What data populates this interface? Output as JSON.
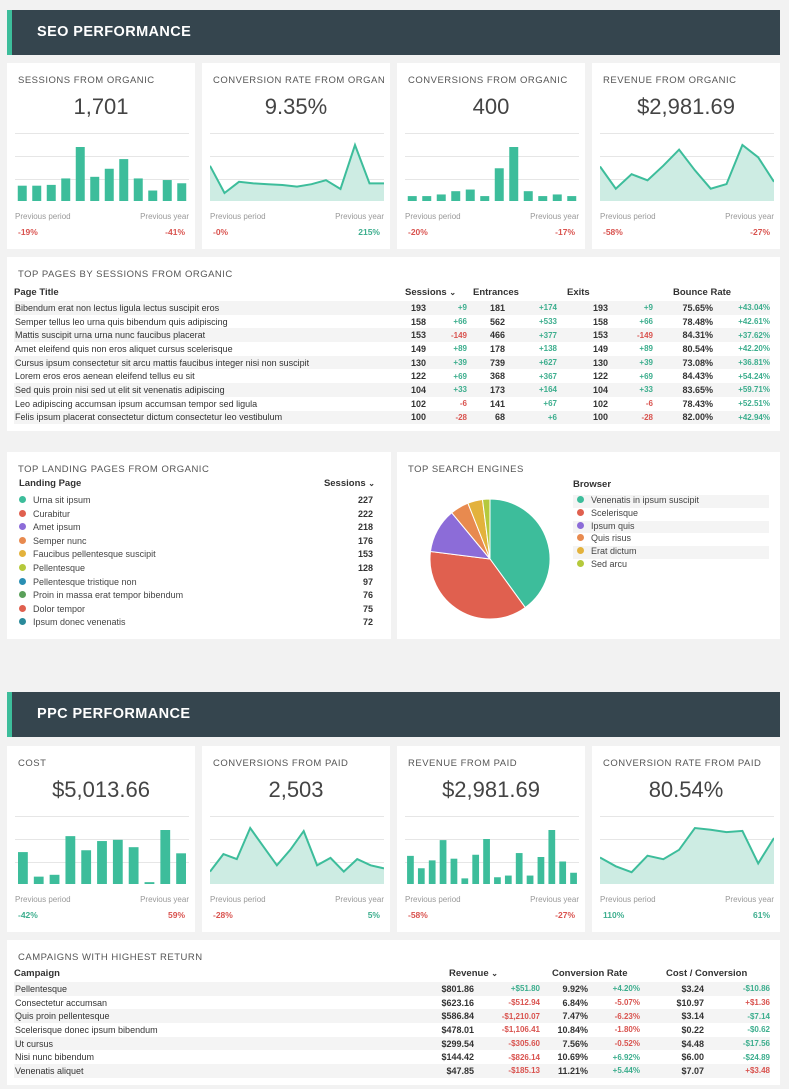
{
  "seo": {
    "header": "SEO PERFORMANCE",
    "kpis": [
      {
        "title": "SESSIONS FROM ORGANIC",
        "value": "1,701",
        "prev_label": "Previous period",
        "year_label": "Previous year",
        "prev_change": "-19%",
        "year_change": "-41%",
        "prev_dir": "neg",
        "year_dir": "neg",
        "chart": "bar",
        "series": [
          19,
          19,
          20,
          28,
          67,
          30,
          40,
          52,
          28,
          13,
          26,
          22
        ]
      },
      {
        "title": "CONVERSION RATE FROM ORGANIC",
        "value": "9.35%",
        "prev_label": "Previous period",
        "year_label": "Previous year",
        "prev_change": "-0%",
        "year_change": "215%",
        "prev_dir": "neg",
        "year_dir": "pos",
        "chart": "area",
        "series": [
          44,
          10,
          24,
          22,
          21,
          20,
          18,
          21,
          26,
          15,
          70,
          22,
          22
        ]
      },
      {
        "title": "CONVERSIONS FROM ORGANIC",
        "value": "400",
        "prev_label": "Previous period",
        "year_label": "Previous year",
        "prev_change": "-20%",
        "year_change": "-17%",
        "prev_dir": "neg",
        "year_dir": "neg",
        "chart": "bar",
        "series": [
          6,
          6,
          8,
          12,
          14,
          6,
          40,
          66,
          12,
          6,
          8,
          6
        ]
      },
      {
        "title": "REVENUE FROM ORGANIC",
        "value": "$2,981.69",
        "prev_label": "Previous period",
        "year_label": "Previous year",
        "prev_change": "-58%",
        "year_change": "-27%",
        "prev_dir": "neg",
        "year_dir": "neg",
        "chart": "area",
        "series": [
          45,
          16,
          35,
          27,
          46,
          67,
          40,
          16,
          22,
          73,
          57,
          25
        ]
      }
    ],
    "top_pages": {
      "title": "TOP PAGES BY SESSIONS FROM ORGANIC",
      "columns": [
        "Page Title",
        "Sessions",
        "Entrances",
        "Exits",
        "Bounce Rate"
      ],
      "rows": [
        [
          "Bibendum erat non lectus ligula lectus suscipit eros",
          "193",
          "+9",
          "181",
          "+174",
          "193",
          "+9",
          "75.65%",
          "+43.04%"
        ],
        [
          "Semper tellus leo urna quis bibendum quis adipiscing",
          "158",
          "+66",
          "562",
          "+533",
          "158",
          "+66",
          "78.48%",
          "+42.61%"
        ],
        [
          "Mattis suscipit urna urna nunc faucibus placerat",
          "153",
          "-149",
          "466",
          "+377",
          "153",
          "-149",
          "84.31%",
          "+37.62%"
        ],
        [
          "Amet eleifend quis non eros aliquet cursus scelerisque",
          "149",
          "+89",
          "178",
          "+138",
          "149",
          "+89",
          "80.54%",
          "+42.20%"
        ],
        [
          "Cursus ipsum consectetur sit arcu mattis faucibus integer nisi non suscipit",
          "130",
          "+39",
          "739",
          "+627",
          "130",
          "+39",
          "73.08%",
          "+36.81%"
        ],
        [
          "Lorem eros eros aenean eleifend tellus eu sit",
          "122",
          "+69",
          "368",
          "+367",
          "122",
          "+69",
          "84.43%",
          "+54.24%"
        ],
        [
          "Sed quis proin nisi sed ut elit sit venenatis adipiscing",
          "104",
          "+33",
          "173",
          "+164",
          "104",
          "+33",
          "83.65%",
          "+59.71%"
        ],
        [
          "Leo adipiscing accumsan ipsum accumsan tempor sed ligula",
          "102",
          "-6",
          "141",
          "+67",
          "102",
          "-6",
          "78.43%",
          "+52.51%"
        ],
        [
          "Felis ipsum placerat consectetur dictum consectetur leo vestibulum",
          "100",
          "-28",
          "68",
          "+6",
          "100",
          "-28",
          "82.00%",
          "+42.94%"
        ]
      ]
    },
    "landing": {
      "title": "TOP LANDING PAGES FROM ORGANIC",
      "col_page": "Landing Page",
      "col_sessions": "Sessions",
      "rows": [
        {
          "label": "Urna sit ipsum",
          "value": "227",
          "color": "#3dbd9b"
        },
        {
          "label": "Curabitur",
          "value": "222",
          "color": "#e0604f"
        },
        {
          "label": "Amet ipsum",
          "value": "218",
          "color": "#8c6cd8"
        },
        {
          "label": "Semper nunc",
          "value": "176",
          "color": "#e88a4f"
        },
        {
          "label": "Faucibus pellentesque suscipit",
          "value": "153",
          "color": "#e3b23c"
        },
        {
          "label": "Pellentesque",
          "value": "128",
          "color": "#b5c93c"
        },
        {
          "label": "Pellentesque tristique non",
          "value": "97",
          "color": "#2a8fb3"
        },
        {
          "label": "Proin in massa erat tempor bibendum",
          "value": "76",
          "color": "#5aa05a"
        },
        {
          "label": "Dolor tempor",
          "value": "75",
          "color": "#e0604f"
        },
        {
          "label": "Ipsum donec venenatis",
          "value": "72",
          "color": "#2a8a9a"
        }
      ]
    },
    "engines": {
      "title": "TOP SEARCH ENGINES",
      "legend_title": "Browser",
      "items": [
        {
          "label": "Venenatis in ipsum suscipit",
          "value": 40,
          "color": "#3dbd9b"
        },
        {
          "label": "Scelerisque",
          "value": 37,
          "color": "#e0604f"
        },
        {
          "label": "Ipsum quis",
          "value": 12,
          "color": "#8c6cd8"
        },
        {
          "label": "Quis risus",
          "value": 5,
          "color": "#e88a4f"
        },
        {
          "label": "Erat dictum",
          "value": 4,
          "color": "#e3b23c"
        },
        {
          "label": "Sed arcu",
          "value": 2,
          "color": "#b5c93c"
        }
      ]
    }
  },
  "ppc": {
    "header": "PPC PERFORMANCE",
    "kpis": [
      {
        "title": "COST",
        "value": "$5,013.66",
        "prev_label": "Previous period",
        "year_label": "Previous year",
        "prev_change": "-42%",
        "year_change": "59%",
        "prev_dir": "pos",
        "year_dir": "neg",
        "chart": "bar",
        "series": [
          52,
          12,
          15,
          78,
          55,
          70,
          72,
          60,
          3,
          88,
          50
        ]
      },
      {
        "title": "CONVERSIONS FROM PAID",
        "value": "2,503",
        "prev_label": "Previous period",
        "year_label": "Previous year",
        "prev_change": "-28%",
        "year_change": "5%",
        "prev_dir": "neg",
        "year_dir": "pos",
        "chart": "area",
        "series": [
          20,
          48,
          40,
          90,
          60,
          30,
          55,
          85,
          30,
          42,
          20,
          40,
          30,
          25
        ]
      },
      {
        "title": "REVENUE FROM PAID",
        "value": "$2,981.69",
        "prev_label": "Previous period",
        "year_label": "Previous year",
        "prev_change": "-58%",
        "year_change": "-27%",
        "prev_dir": "neg",
        "year_dir": "neg",
        "chart": "bar",
        "series": [
          50,
          28,
          42,
          78,
          45,
          10,
          52,
          80,
          12,
          15,
          55,
          15,
          48,
          96,
          40,
          20
        ]
      },
      {
        "title": "CONVERSION RATE FROM PAID",
        "value": "80.54%",
        "prev_label": "Previous period",
        "year_label": "Previous year",
        "prev_change": "110%",
        "year_change": "61%",
        "prev_dir": "pos",
        "year_dir": "pos",
        "chart": "area",
        "series": [
          45,
          30,
          20,
          48,
          42,
          58,
          95,
          92,
          88,
          90,
          35,
          78
        ]
      }
    ],
    "campaigns": {
      "title": "CAMPAIGNS WITH HIGHEST RETURN",
      "columns": [
        "Campaign",
        "Revenue",
        "Conversion Rate",
        "Cost / Conversion"
      ],
      "rows": [
        [
          "Pellentesque",
          "$801.86",
          "+$51.80",
          "9.92%",
          "+4.20%",
          "$3.24",
          "-$10.86"
        ],
        [
          "Consectetur accumsan",
          "$623.16",
          "-$512.94",
          "6.84%",
          "-5.07%",
          "$10.97",
          "+$1.36"
        ],
        [
          "Quis proin pellentesque",
          "$586.84",
          "-$1,210.07",
          "7.47%",
          "-6.23%",
          "$3.14",
          "-$7.14"
        ],
        [
          "Scelerisque donec ipsum bibendum",
          "$478.01",
          "-$1,106.41",
          "10.84%",
          "-1.80%",
          "$0.22",
          "-$0.62"
        ],
        [
          "Ut cursus",
          "$299.54",
          "-$305.60",
          "7.56%",
          "-0.52%",
          "$4.48",
          "-$17.56"
        ],
        [
          "Nisi nunc bibendum",
          "$144.42",
          "-$826.14",
          "10.69%",
          "+6.92%",
          "$6.00",
          "-$24.89"
        ],
        [
          "Venenatis aliquet",
          "$47.85",
          "-$185.13",
          "11.21%",
          "+5.44%",
          "$7.07",
          "+$3.48"
        ]
      ]
    }
  },
  "theme": {
    "accent": "#3dbd9b",
    "header_bg": "#35454e",
    "negative": "#d9534f",
    "positive": "#3dae8e"
  }
}
